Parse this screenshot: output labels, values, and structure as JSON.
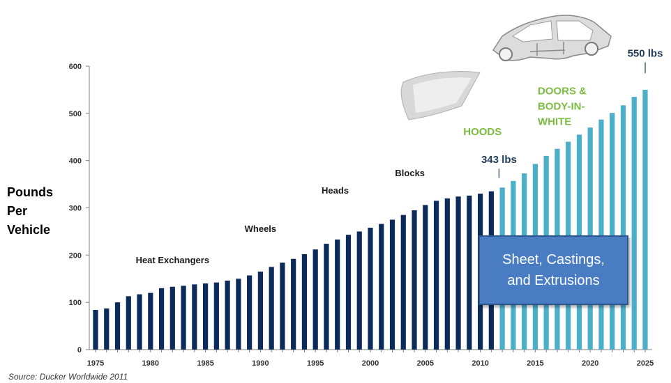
{
  "chart_data": {
    "type": "bar",
    "title": "",
    "ylabel": "Pounds\nPer\nVehicle",
    "xlabel": "",
    "ylim": [
      0,
      600
    ],
    "yticks": [
      0,
      100,
      200,
      300,
      400,
      500,
      600
    ],
    "xticks": [
      1975,
      1980,
      1985,
      1990,
      1995,
      2000,
      2005,
      2010,
      2015,
      2020,
      2025
    ],
    "grid": false,
    "series": [
      {
        "segment": "historical",
        "color": "#0d2b5a",
        "x": [
          1975,
          1976,
          1977,
          1978,
          1979,
          1980,
          1981,
          1982,
          1983,
          1984,
          1985,
          1986,
          1987,
          1988,
          1989,
          1990,
          1991,
          1992,
          1993,
          1994,
          1995,
          1996,
          1997,
          1998,
          1999,
          2000,
          2001,
          2002,
          2003,
          2004,
          2005,
          2006,
          2007,
          2008,
          2009,
          2010,
          2011
        ],
        "values": [
          84,
          87,
          100,
          113,
          117,
          120,
          130,
          133,
          135,
          138,
          140,
          142,
          146,
          150,
          157,
          165,
          175,
          184,
          192,
          202,
          212,
          224,
          233,
          243,
          250,
          258,
          266,
          275,
          285,
          295,
          306,
          315,
          320,
          324,
          326,
          330,
          335
        ]
      },
      {
        "segment": "projected",
        "color": "#4bafc9",
        "x": [
          2012,
          2013,
          2014,
          2015,
          2016,
          2017,
          2018,
          2019,
          2020,
          2021,
          2022,
          2023,
          2024,
          2025
        ],
        "values": [
          343,
          357,
          373,
          393,
          410,
          425,
          440,
          455,
          470,
          487,
          501,
          517,
          535,
          550
        ]
      }
    ],
    "annotations": [
      {
        "text": "Heat Exchangers",
        "x": 1982,
        "y": 183
      },
      {
        "text": "Wheels",
        "x": 1990,
        "y": 249
      },
      {
        "text": "Heads",
        "x": 1996.8,
        "y": 330
      },
      {
        "text": "Blocks",
        "x": 2003.6,
        "y": 367
      },
      {
        "text": "HOODS",
        "x": 2010.2,
        "y": 454
      },
      {
        "text": "DOORS &\nBODY-IN-\nWHITE",
        "x": 2018.4,
        "y": 540
      },
      {
        "text": "343 lbs",
        "x": 2011.7,
        "y": 395
      },
      {
        "text": "550 lbs",
        "x": 2025,
        "y": 620
      }
    ],
    "callout": "Sheet, Castings,\nand Extrusions",
    "source": "Source:  Ducker Worldwide 2011"
  }
}
